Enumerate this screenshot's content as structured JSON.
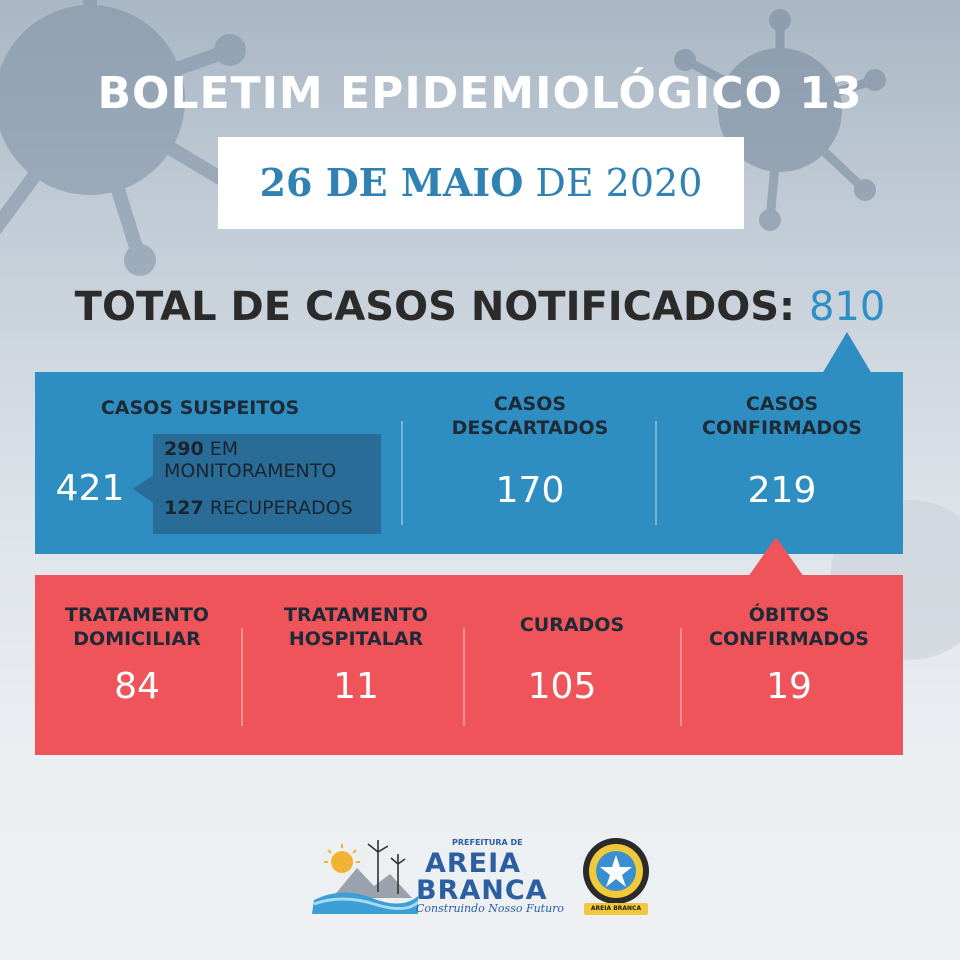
{
  "header": {
    "title": "BOLETIM EPIDEMIOLÓGICO 13",
    "date_bold": "26 DE MAIO",
    "date_rest": " DE 2020"
  },
  "total": {
    "label": "TOTAL DE CASOS NOTIFICADOS:",
    "value": "810"
  },
  "blue_panel": {
    "color": "#2f8ec1",
    "suspeitos": {
      "label": "CASOS SUSPEITOS",
      "value": "421",
      "monitor_num": "290",
      "monitor_label_1": "EM",
      "monitor_label_2": "MONITORAMENTO",
      "recovered_num": "127",
      "recovered_label": "RECUPERADOS"
    },
    "descartados": {
      "label_1": "CASOS",
      "label_2": "DESCARTADOS",
      "value": "170"
    },
    "confirmados": {
      "label_1": "CASOS",
      "label_2": "CONFIRMADOS",
      "value": "219"
    }
  },
  "red_panel": {
    "color": "#ef545a",
    "items": [
      {
        "label_1": "TRATAMENTO",
        "label_2": "DOMICILIAR",
        "value": "84"
      },
      {
        "label_1": "TRATAMENTO",
        "label_2": "HOSPITALAR",
        "value": "11"
      },
      {
        "label_1": "CURADOS",
        "label_2": "",
        "value": "105"
      },
      {
        "label_1": "ÓBITOS",
        "label_2": "CONFIRMADOS",
        "value": "19"
      }
    ]
  },
  "footer": {
    "prefeitura": "PREFEITURA DE",
    "city_1": "AREIA",
    "city_2": "BRANCA",
    "slogan": "Construindo Nosso Futuro",
    "seal_text": "AREIA BRANCA"
  }
}
